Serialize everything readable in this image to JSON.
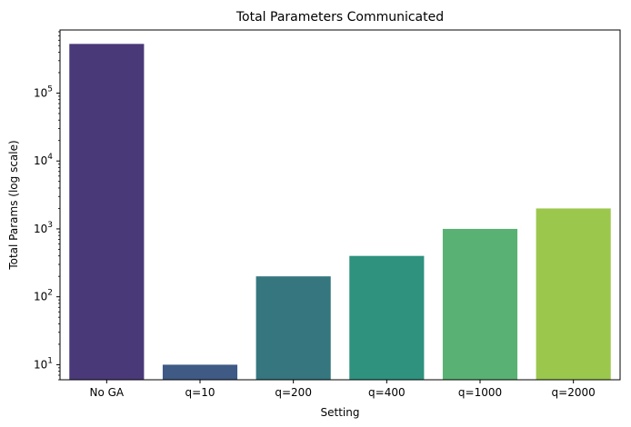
{
  "chart_data": {
    "type": "bar",
    "title": "Total Parameters Communicated",
    "xlabel": "Setting",
    "ylabel": "Total Params (log scale)",
    "yscale": "log",
    "ylim": [
      6,
      850000
    ],
    "categories": [
      "No GA",
      "q=10",
      "q=200",
      "q=400",
      "q=1000",
      "q=2000"
    ],
    "values": [
      530000,
      10,
      200,
      400,
      1000,
      2000
    ],
    "colors": [
      "#4a3979",
      "#3e5a85",
      "#35767f",
      "#2e927f",
      "#59b273",
      "#9bc74d"
    ],
    "yticks": [
      {
        "value": 10,
        "base": "10",
        "exp": "1"
      },
      {
        "value": 100,
        "base": "10",
        "exp": "2"
      },
      {
        "value": 1000,
        "base": "10",
        "exp": "3"
      },
      {
        "value": 10000,
        "base": "10",
        "exp": "4"
      },
      {
        "value": 100000,
        "base": "10",
        "exp": "5"
      }
    ],
    "grid": false,
    "legend": "none"
  }
}
